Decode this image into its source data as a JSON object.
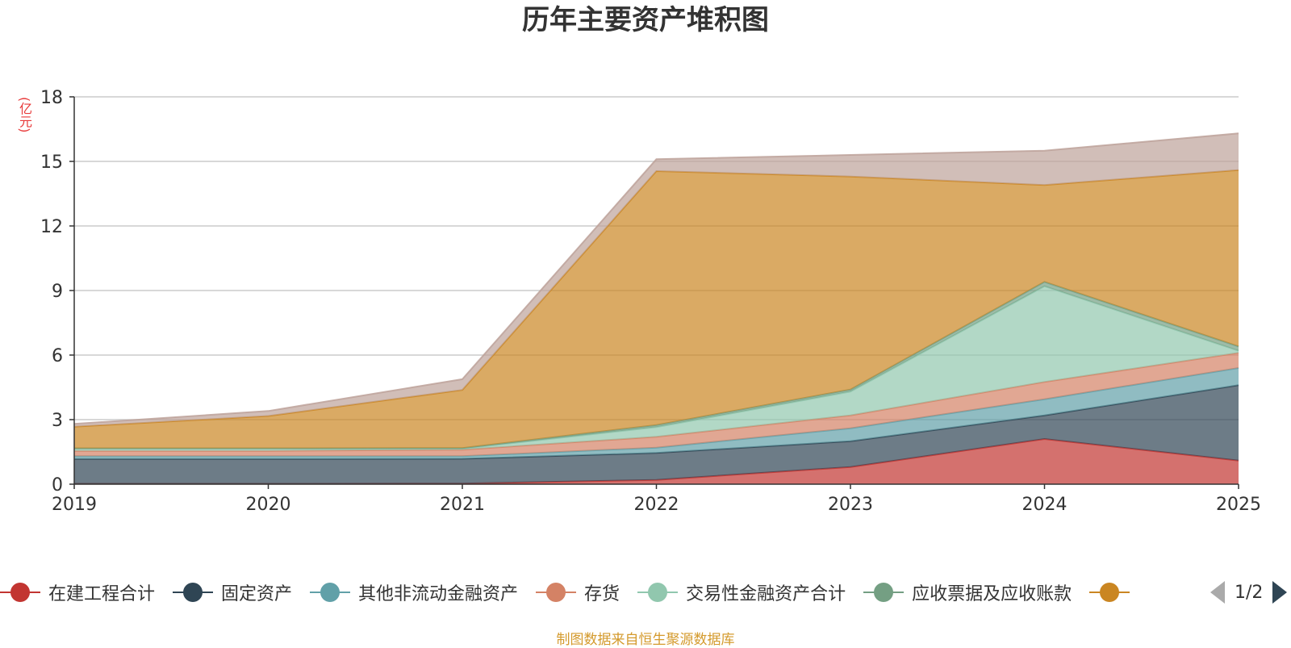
{
  "chart_data": {
    "type": "area",
    "stacked": true,
    "title": "历年主要资产堆积图",
    "ylabel": "(亿元)",
    "xlabel": "",
    "categories": [
      "2019",
      "2020",
      "2021",
      "2022",
      "2023",
      "2024",
      "2025"
    ],
    "ylim": [
      0,
      18
    ],
    "yticks": [
      0,
      3,
      6,
      9,
      12,
      15,
      18
    ],
    "grid": true,
    "legend_position": "bottom",
    "series": [
      {
        "name": "在建工程合计",
        "color": "#c23531",
        "values": [
          0.02,
          0.02,
          0.03,
          0.2,
          0.8,
          2.1,
          1.1
        ]
      },
      {
        "name": "固定资产",
        "color": "#2f4554",
        "values": [
          1.15,
          1.15,
          1.15,
          1.25,
          1.2,
          1.1,
          3.5
        ]
      },
      {
        "name": "其他非流动金融资产",
        "color": "#61a0a8",
        "values": [
          0.13,
          0.13,
          0.12,
          0.25,
          0.6,
          0.75,
          0.8
        ]
      },
      {
        "name": "存货",
        "color": "#d48265",
        "values": [
          0.25,
          0.25,
          0.3,
          0.5,
          0.6,
          0.8,
          0.7
        ]
      },
      {
        "name": "交易性金融资产合计",
        "color": "#91c7ae",
        "values": [
          0.1,
          0.1,
          0.05,
          0.45,
          1.1,
          4.45,
          0.1
        ]
      },
      {
        "name": "应收票据及应收账款",
        "color": "#749f83",
        "values": [
          0.02,
          0.02,
          0.03,
          0.1,
          0.1,
          0.2,
          0.2
        ]
      },
      {
        "name": "",
        "color": "#ca8622",
        "values": [
          1.0,
          1.5,
          2.7,
          11.8,
          9.9,
          4.5,
          8.2
        ]
      },
      {
        "name": "",
        "color": "#bda29a",
        "values": [
          0.13,
          0.23,
          0.5,
          0.55,
          1.0,
          1.6,
          1.7
        ]
      }
    ]
  },
  "legend": {
    "items": [
      {
        "label": "在建工程合计",
        "color": "#c23531"
      },
      {
        "label": "固定资产",
        "color": "#2f4554"
      },
      {
        "label": "其他非流动金融资产",
        "color": "#61a0a8"
      },
      {
        "label": "存货",
        "color": "#d48265"
      },
      {
        "label": "交易性金融资产合计",
        "color": "#91c7ae"
      },
      {
        "label": "应收票据及应收账款",
        "color": "#749f83"
      },
      {
        "label": "",
        "color": "#ca8622"
      }
    ],
    "page": "1/2"
  },
  "footer": "制图数据来自恒生聚源数据库"
}
